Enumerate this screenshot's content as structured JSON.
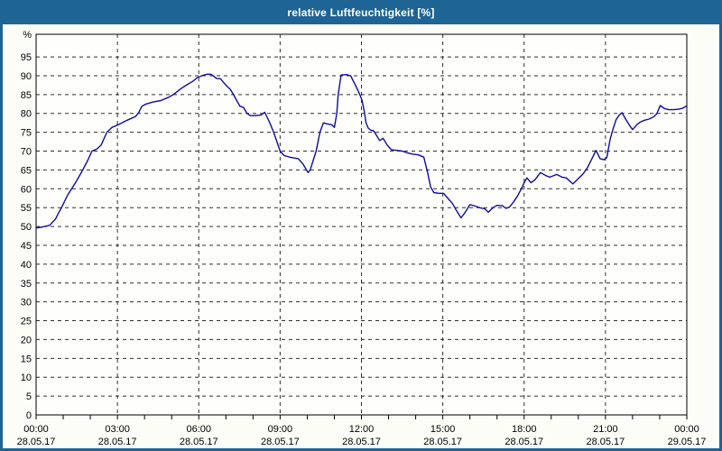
{
  "window": {
    "title": "relative Luftfeuchtigkeit [%]"
  },
  "colors": {
    "titlebar": "#1e6494",
    "window_border": "#1e6494",
    "content_background": "#fdfdf8",
    "plot_background": "#fefefc",
    "plot_border": "#000000",
    "grid": "#2e2e2e",
    "line": "#0d0da0",
    "label_text": "#000000",
    "title_text": "#ffffff"
  },
  "chart_data": {
    "type": "line",
    "title": "relative Luftfeuchtigkeit [%]",
    "xlabel": "",
    "ylabel": "%",
    "ylim": [
      0,
      101
    ],
    "xlim_hours": [
      0,
      24
    ],
    "grid": "dashed both axes",
    "legend": "none",
    "y_ticks": [
      0,
      5,
      10,
      15,
      20,
      25,
      30,
      35,
      40,
      45,
      50,
      55,
      60,
      65,
      70,
      75,
      80,
      85,
      90,
      95
    ],
    "x_ticks": [
      {
        "hour": 0,
        "time": "00:00",
        "date": "28.05.17"
      },
      {
        "hour": 3,
        "time": "03:00",
        "date": "28.05.17"
      },
      {
        "hour": 6,
        "time": "06:00",
        "date": "28.05.17"
      },
      {
        "hour": 9,
        "time": "09:00",
        "date": "28.05.17"
      },
      {
        "hour": 12,
        "time": "12:00",
        "date": "28.05.17"
      },
      {
        "hour": 15,
        "time": "15:00",
        "date": "28.05.17"
      },
      {
        "hour": 18,
        "time": "18:00",
        "date": "28.05.17"
      },
      {
        "hour": 21,
        "time": "21:00",
        "date": "28.05.17"
      },
      {
        "hour": 24,
        "time": "00:00",
        "date": "29.05.17"
      }
    ],
    "minor_x_tick_every_hours": 1,
    "series": [
      {
        "name": "relative Luftfeuchtigkeit [%]",
        "color": "#0d0da0",
        "points": [
          [
            0.0,
            49.6
          ],
          [
            0.25,
            49.9
          ],
          [
            0.5,
            50.3
          ],
          [
            0.72,
            52.0
          ],
          [
            0.83,
            53.6
          ],
          [
            0.94,
            55.0
          ],
          [
            1.06,
            56.8
          ],
          [
            1.17,
            58.4
          ],
          [
            1.31,
            60.0
          ],
          [
            1.5,
            62.2
          ],
          [
            1.72,
            65.0
          ],
          [
            1.9,
            67.5
          ],
          [
            2.06,
            70.0
          ],
          [
            2.25,
            70.6
          ],
          [
            2.4,
            71.6
          ],
          [
            2.61,
            75.0
          ],
          [
            2.8,
            76.3
          ],
          [
            3.0,
            76.9
          ],
          [
            3.33,
            78.1
          ],
          [
            3.67,
            79.2
          ],
          [
            3.78,
            80.2
          ],
          [
            3.9,
            81.9
          ],
          [
            4.06,
            82.5
          ],
          [
            4.3,
            83.0
          ],
          [
            4.6,
            83.4
          ],
          [
            4.89,
            84.3
          ],
          [
            5.06,
            85.0
          ],
          [
            5.33,
            86.5
          ],
          [
            5.56,
            87.6
          ],
          [
            5.78,
            88.5
          ],
          [
            5.95,
            89.5
          ],
          [
            6.15,
            90.1
          ],
          [
            6.3,
            90.4
          ],
          [
            6.45,
            90.4
          ],
          [
            6.55,
            89.9
          ],
          [
            6.65,
            89.3
          ],
          [
            6.8,
            89.2
          ],
          [
            7.0,
            87.5
          ],
          [
            7.17,
            86.3
          ],
          [
            7.28,
            85.0
          ],
          [
            7.44,
            82.9
          ],
          [
            7.52,
            81.9
          ],
          [
            7.65,
            81.6
          ],
          [
            7.78,
            80.0
          ],
          [
            7.9,
            79.4
          ],
          [
            8.1,
            79.4
          ],
          [
            8.3,
            79.6
          ],
          [
            8.43,
            80.3
          ],
          [
            8.6,
            77.8
          ],
          [
            8.76,
            75.0
          ],
          [
            9.0,
            70.0
          ],
          [
            9.15,
            68.8
          ],
          [
            9.4,
            68.3
          ],
          [
            9.67,
            68.0
          ],
          [
            9.85,
            66.5
          ],
          [
            10.03,
            64.3
          ],
          [
            10.11,
            65.0
          ],
          [
            10.33,
            70.0
          ],
          [
            10.47,
            75.0
          ],
          [
            10.6,
            77.5
          ],
          [
            10.75,
            77.2
          ],
          [
            10.9,
            77.0
          ],
          [
            11.0,
            76.3
          ],
          [
            11.09,
            80.0
          ],
          [
            11.14,
            85.0
          ],
          [
            11.25,
            90.2
          ],
          [
            11.45,
            90.3
          ],
          [
            11.6,
            90.0
          ],
          [
            11.72,
            88.3
          ],
          [
            11.83,
            86.7
          ],
          [
            11.94,
            85.0
          ],
          [
            12.02,
            83.5
          ],
          [
            12.1,
            80.7
          ],
          [
            12.17,
            77.5
          ],
          [
            12.25,
            76.1
          ],
          [
            12.35,
            75.5
          ],
          [
            12.45,
            75.4
          ],
          [
            12.57,
            74.0
          ],
          [
            12.67,
            72.8
          ],
          [
            12.8,
            73.4
          ],
          [
            12.95,
            71.6
          ],
          [
            13.1,
            70.4
          ],
          [
            13.3,
            70.2
          ],
          [
            13.5,
            70.0
          ],
          [
            13.7,
            69.5
          ],
          [
            13.9,
            69.2
          ],
          [
            14.1,
            69.0
          ],
          [
            14.3,
            68.4
          ],
          [
            14.45,
            64.0
          ],
          [
            14.55,
            60.5
          ],
          [
            14.67,
            59.0
          ],
          [
            14.85,
            58.8
          ],
          [
            15.03,
            58.8
          ],
          [
            15.22,
            57.2
          ],
          [
            15.35,
            56.2
          ],
          [
            15.5,
            54.3
          ],
          [
            15.67,
            52.3
          ],
          [
            15.8,
            53.5
          ],
          [
            16.0,
            55.8
          ],
          [
            16.2,
            55.4
          ],
          [
            16.4,
            54.9
          ],
          [
            16.55,
            54.7
          ],
          [
            16.68,
            53.8
          ],
          [
            16.85,
            55.0
          ],
          [
            17.0,
            55.6
          ],
          [
            17.2,
            55.5
          ],
          [
            17.33,
            54.8
          ],
          [
            17.45,
            55.1
          ],
          [
            17.6,
            56.4
          ],
          [
            17.75,
            58.0
          ],
          [
            17.9,
            60.0
          ],
          [
            18.0,
            61.6
          ],
          [
            18.1,
            62.9
          ],
          [
            18.25,
            61.6
          ],
          [
            18.4,
            62.4
          ],
          [
            18.6,
            64.3
          ],
          [
            18.8,
            63.5
          ],
          [
            18.95,
            63.1
          ],
          [
            19.2,
            63.8
          ],
          [
            19.4,
            63.1
          ],
          [
            19.55,
            62.9
          ],
          [
            19.8,
            61.3
          ],
          [
            20.0,
            62.7
          ],
          [
            20.17,
            63.9
          ],
          [
            20.33,
            65.5
          ],
          [
            20.5,
            68.0
          ],
          [
            20.65,
            70.2
          ],
          [
            20.8,
            68.0
          ],
          [
            20.95,
            67.7
          ],
          [
            21.05,
            68.3
          ],
          [
            21.17,
            73.1
          ],
          [
            21.28,
            75.9
          ],
          [
            21.39,
            78.3
          ],
          [
            21.5,
            79.5
          ],
          [
            21.61,
            80.2
          ],
          [
            21.75,
            78.4
          ],
          [
            21.94,
            76.3
          ],
          [
            22.0,
            75.7
          ],
          [
            22.17,
            77.1
          ],
          [
            22.28,
            77.7
          ],
          [
            22.44,
            78.2
          ],
          [
            22.61,
            78.5
          ],
          [
            22.78,
            79.1
          ],
          [
            22.89,
            79.9
          ],
          [
            23.02,
            82.1
          ],
          [
            23.17,
            81.3
          ],
          [
            23.33,
            81.0
          ],
          [
            23.5,
            81.0
          ],
          [
            23.7,
            81.1
          ],
          [
            23.85,
            81.4
          ],
          [
            24.0,
            82.0
          ]
        ]
      }
    ]
  }
}
